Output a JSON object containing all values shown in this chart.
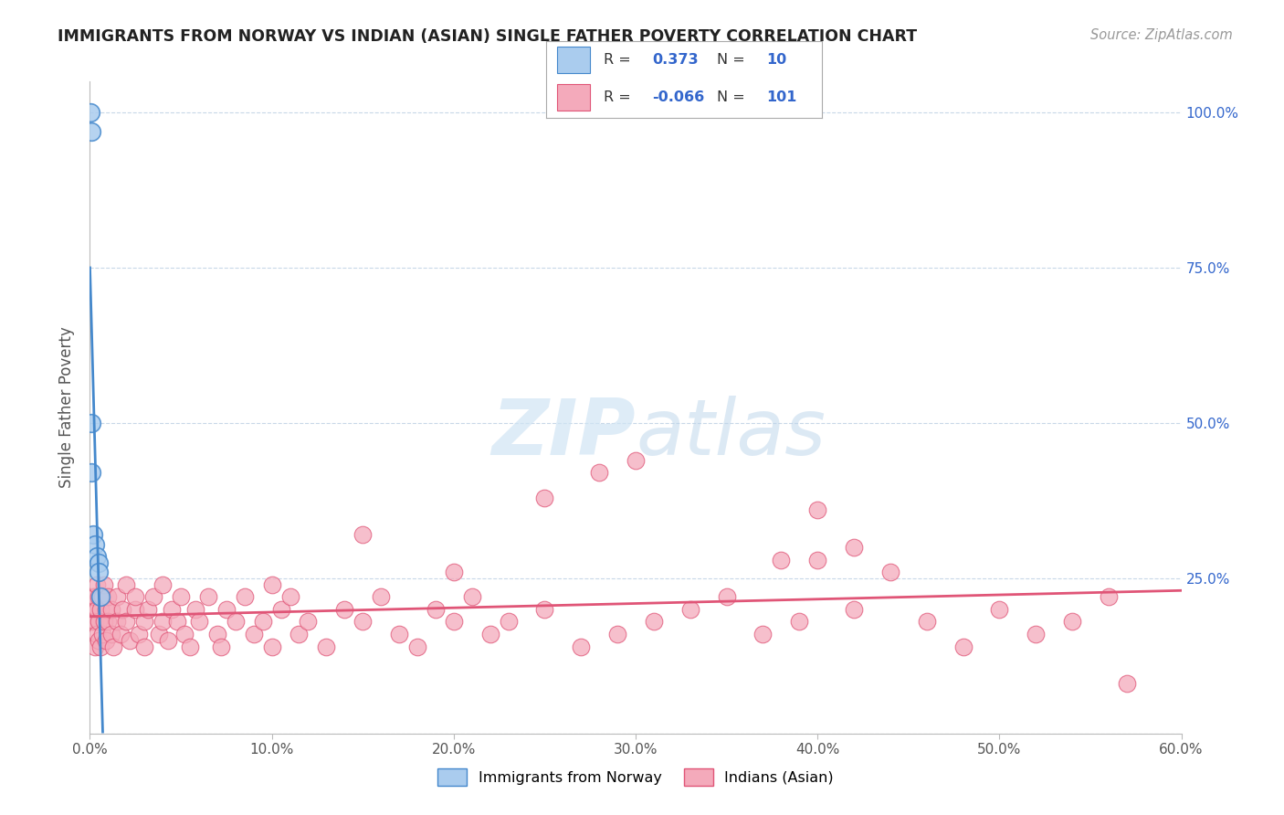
{
  "title": "IMMIGRANTS FROM NORWAY VS INDIAN (ASIAN) SINGLE FATHER POVERTY CORRELATION CHART",
  "source": "Source: ZipAtlas.com",
  "ylabel_label": "Single Father Poverty",
  "xlim": [
    0.0,
    0.6
  ],
  "ylim": [
    0.0,
    1.05
  ],
  "color_norway": "#aaccee",
  "color_india": "#f4aabb",
  "color_norway_line": "#4488cc",
  "color_india_line": "#e05577",
  "color_r_val": "#3366cc",
  "background_color": "#ffffff",
  "grid_color": "#c8d8e8",
  "legend_label1": "Immigrants from Norway",
  "legend_label2": "Indians (Asian)",
  "watermark_zip": "ZIP",
  "watermark_atlas": "atlas",
  "norway_x": [
    0.0004,
    0.0006,
    0.001,
    0.001,
    0.002,
    0.003,
    0.004,
    0.005,
    0.005,
    0.006
  ],
  "norway_y": [
    1.0,
    0.97,
    0.5,
    0.42,
    0.32,
    0.305,
    0.285,
    0.275,
    0.26,
    0.22
  ],
  "india_x": [
    0.001,
    0.002,
    0.002,
    0.003,
    0.003,
    0.003,
    0.004,
    0.004,
    0.004,
    0.005,
    0.005,
    0.005,
    0.006,
    0.006,
    0.007,
    0.007,
    0.008,
    0.008,
    0.009,
    0.009,
    0.01,
    0.01,
    0.012,
    0.012,
    0.013,
    0.015,
    0.015,
    0.017,
    0.018,
    0.02,
    0.02,
    0.022,
    0.025,
    0.025,
    0.027,
    0.03,
    0.03,
    0.032,
    0.035,
    0.038,
    0.04,
    0.04,
    0.043,
    0.045,
    0.048,
    0.05,
    0.052,
    0.055,
    0.058,
    0.06,
    0.065,
    0.07,
    0.072,
    0.075,
    0.08,
    0.085,
    0.09,
    0.095,
    0.1,
    0.105,
    0.11,
    0.115,
    0.12,
    0.13,
    0.14,
    0.15,
    0.16,
    0.17,
    0.18,
    0.19,
    0.2,
    0.21,
    0.22,
    0.23,
    0.25,
    0.27,
    0.29,
    0.31,
    0.33,
    0.35,
    0.37,
    0.39,
    0.4,
    0.42,
    0.44,
    0.46,
    0.48,
    0.5,
    0.52,
    0.54,
    0.56,
    0.57,
    0.4,
    0.42,
    0.38,
    0.3,
    0.28,
    0.25,
    0.2,
    0.15,
    0.1
  ],
  "india_y": [
    0.18,
    0.2,
    0.22,
    0.14,
    0.18,
    0.22,
    0.16,
    0.2,
    0.24,
    0.15,
    0.18,
    0.22,
    0.14,
    0.2,
    0.16,
    0.22,
    0.18,
    0.24,
    0.15,
    0.2,
    0.18,
    0.22,
    0.16,
    0.2,
    0.14,
    0.18,
    0.22,
    0.16,
    0.2,
    0.18,
    0.24,
    0.15,
    0.2,
    0.22,
    0.16,
    0.18,
    0.14,
    0.2,
    0.22,
    0.16,
    0.18,
    0.24,
    0.15,
    0.2,
    0.18,
    0.22,
    0.16,
    0.14,
    0.2,
    0.18,
    0.22,
    0.16,
    0.14,
    0.2,
    0.18,
    0.22,
    0.16,
    0.18,
    0.14,
    0.2,
    0.22,
    0.16,
    0.18,
    0.14,
    0.2,
    0.18,
    0.22,
    0.16,
    0.14,
    0.2,
    0.18,
    0.22,
    0.16,
    0.18,
    0.2,
    0.14,
    0.16,
    0.18,
    0.2,
    0.22,
    0.16,
    0.18,
    0.28,
    0.2,
    0.26,
    0.18,
    0.14,
    0.2,
    0.16,
    0.18,
    0.22,
    0.08,
    0.36,
    0.3,
    0.28,
    0.44,
    0.42,
    0.38,
    0.26,
    0.32,
    0.24
  ],
  "xtick_vals": [
    0.0,
    0.1,
    0.2,
    0.3,
    0.4,
    0.5,
    0.6
  ],
  "xtick_labels": [
    "0.0%",
    "10.0%",
    "20.0%",
    "30.0%",
    "40.0%",
    "50.0%",
    "60.0%"
  ],
  "ytick_vals": [
    0.0,
    0.25,
    0.5,
    0.75,
    1.0
  ],
  "ytick_labels_right": [
    "",
    "25.0%",
    "50.0%",
    "75.0%",
    "100.0%"
  ]
}
